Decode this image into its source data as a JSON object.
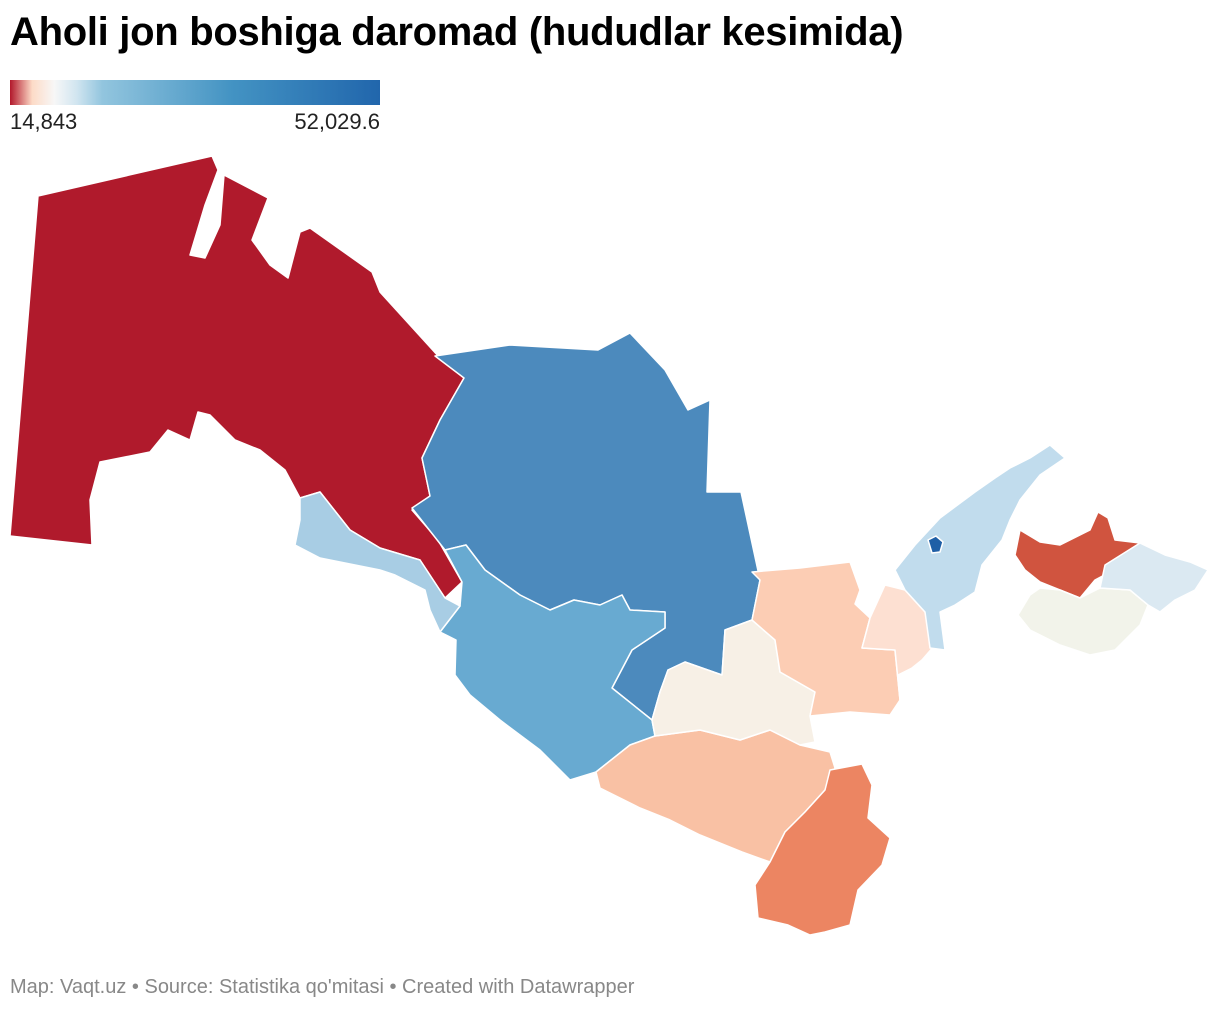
{
  "title": "Aholi jon boshiga daromad (hududlar kesimida)",
  "legend": {
    "min_label": "14,843",
    "max_label": "52,029.6",
    "colors": [
      "#b2182b",
      "#fddbc7",
      "#f7f7f7",
      "#d1e5f0",
      "#92c5de",
      "#4393c3",
      "#2166ac"
    ]
  },
  "regions": {
    "r01": "#b01a2c",
    "r02": "#4c8abd",
    "r03": "#68aad1",
    "r04": "#a8cde4",
    "r05": "#f9c1a4",
    "r06": "#f7f0e6",
    "r07": "#fccdb4",
    "r08": "#ec8562",
    "r09": "#fde0d2",
    "r10": "#c1dced",
    "r11": "#1f5fa6",
    "r12": "#d0543f",
    "r13": "#f2f3ea",
    "r14": "#dbe9f2"
  },
  "footer": {
    "credit": "Map: Vaqt.uz • Source: Statistika qo'mitasi • Created with Datawrapper"
  }
}
